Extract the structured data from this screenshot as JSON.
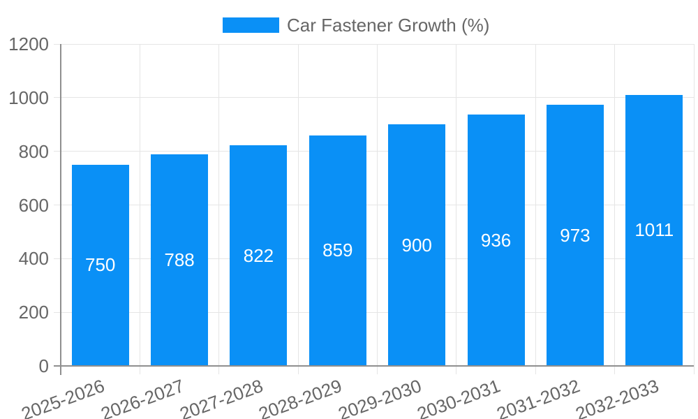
{
  "legend": {
    "label": "Car Fastener Growth (%)"
  },
  "chart_data": {
    "type": "bar",
    "title": "",
    "xlabel": "",
    "ylabel": "",
    "categories": [
      "2025-2026",
      "2026-2027",
      "2027-2028",
      "2028-2029",
      "2029-2030",
      "2030-2031",
      "2031-2032",
      "2032-2033"
    ],
    "values": [
      750,
      788,
      822,
      859,
      900,
      936,
      973,
      1011
    ],
    "series_name": "Car Fastener Growth (%)",
    "value_labels_visible": true,
    "ylim": [
      0,
      1200
    ],
    "yticks": [
      0,
      200,
      400,
      600,
      800,
      1000,
      1200
    ],
    "grid": true,
    "legend_position": "top",
    "x_tick_rotation_deg": -20,
    "colors": {
      "bar": "#0a90f6",
      "grid": "#e5e5e5",
      "axis": "#8f8f8f",
      "tick_label": "#666666",
      "value_label": "#ffffff",
      "background": "#ffffff"
    }
  }
}
